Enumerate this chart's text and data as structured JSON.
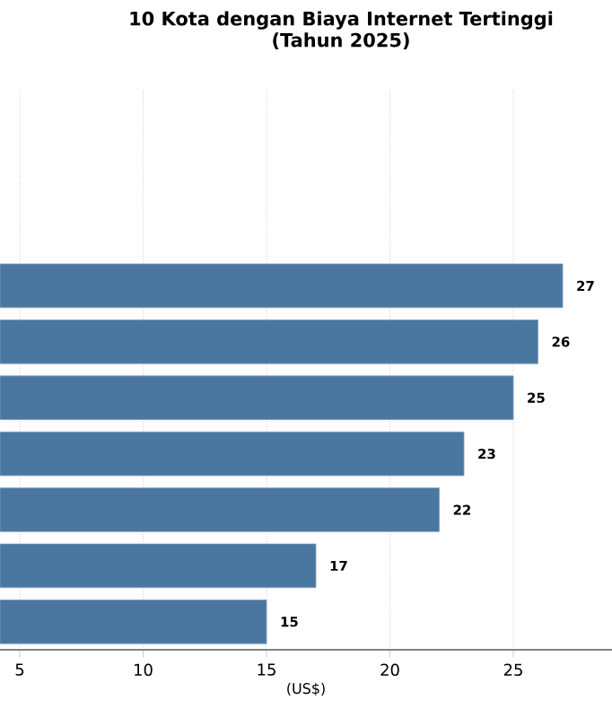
{
  "chart_data": {
    "type": "bar",
    "orientation": "horizontal",
    "title": "10 Kota dengan Biaya Internet Tertinggi\n(Tahun 2025)",
    "xlabel": "(US$)",
    "categories": [
      null,
      null,
      null,
      null,
      null,
      null,
      null,
      null,
      null,
      null
    ],
    "values": [
      null,
      null,
      null,
      27,
      26,
      25,
      23,
      22,
      17,
      15
    ],
    "color": "#4a77a0",
    "data_labels": true,
    "xlim": [
      4.2,
      29
    ],
    "xticks": [
      5,
      10,
      15,
      20,
      25
    ],
    "grid": true,
    "tick_labels": "x"
  }
}
